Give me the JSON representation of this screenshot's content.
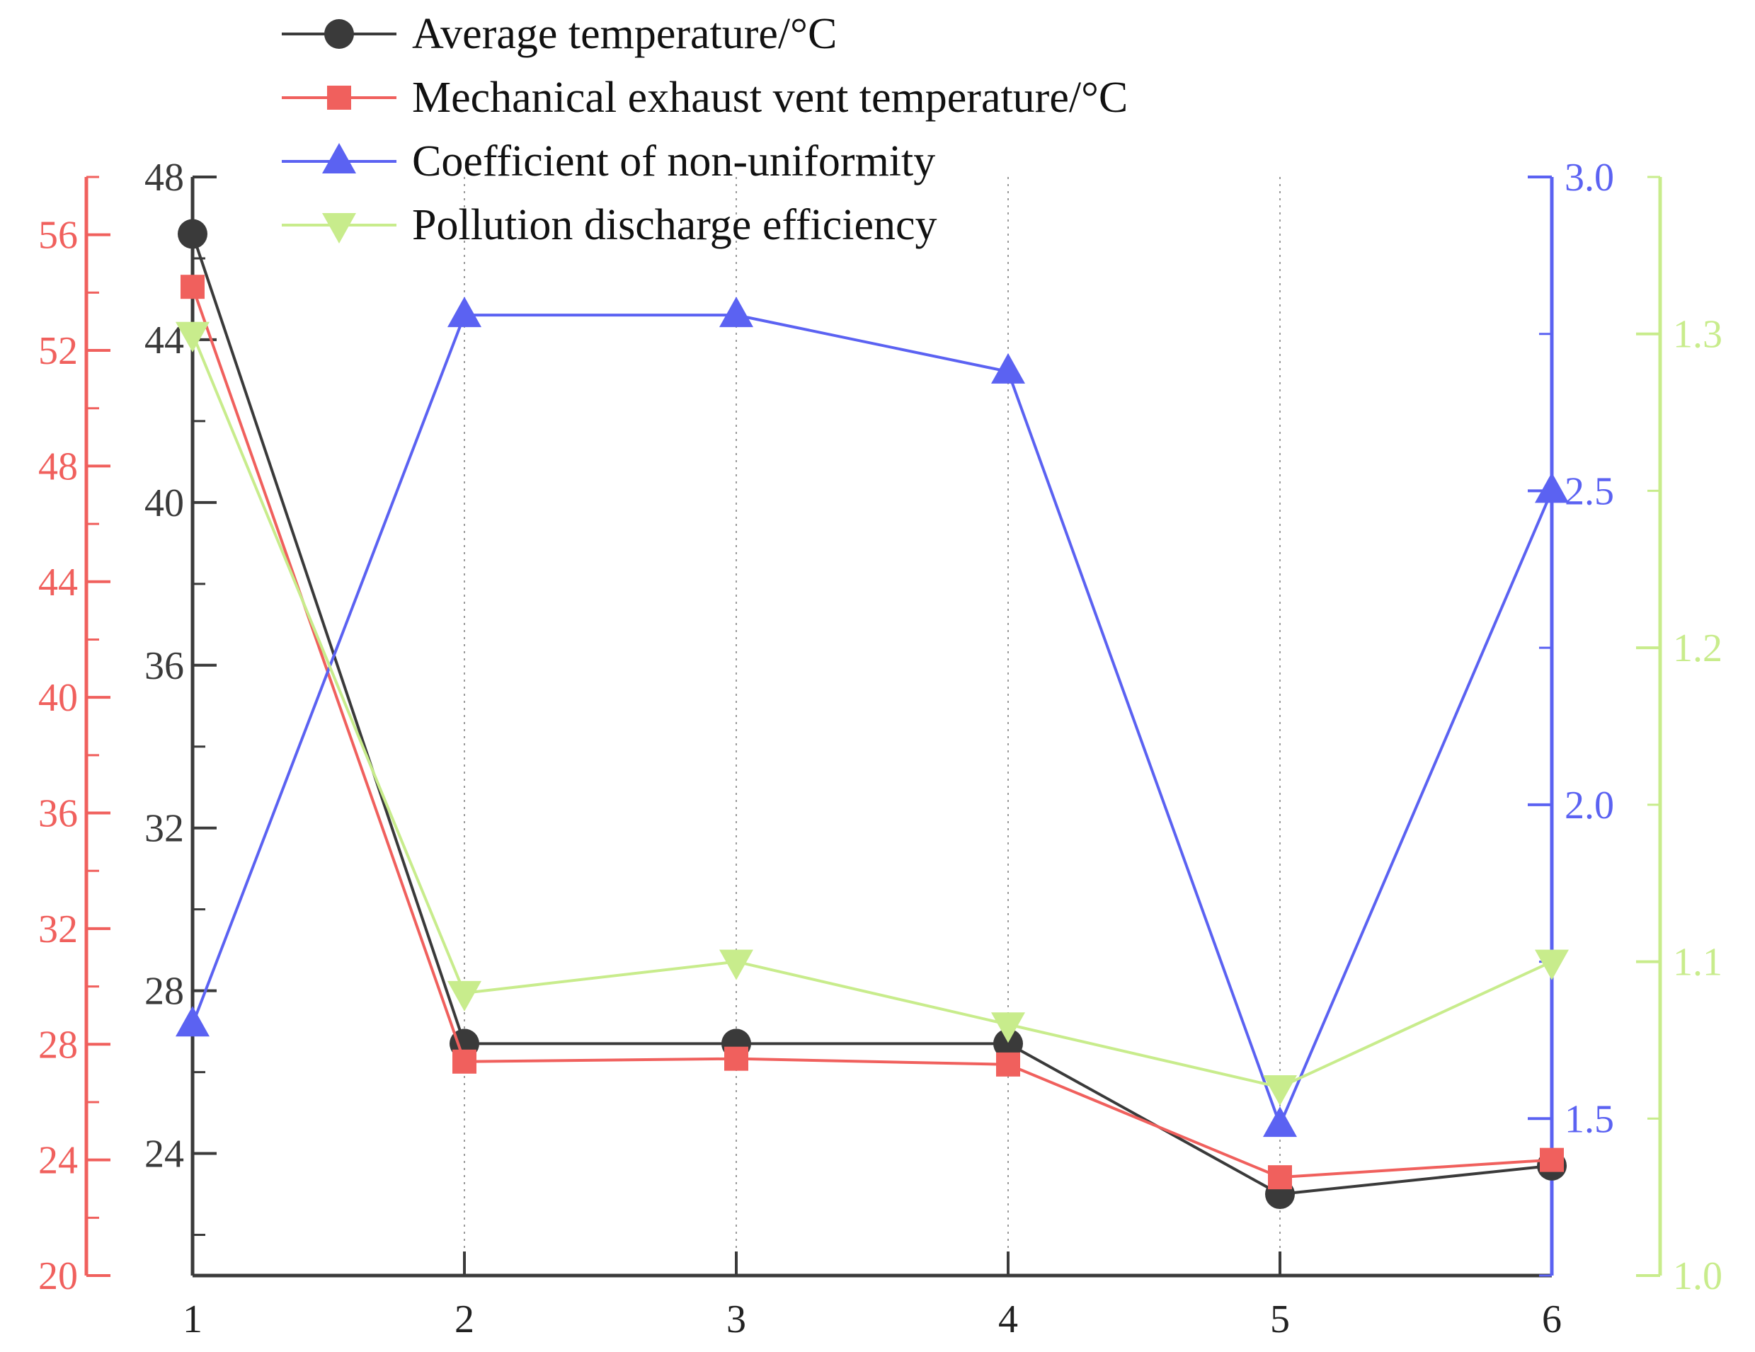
{
  "chart_data": {
    "type": "line",
    "x": [
      1,
      2,
      3,
      4,
      5,
      6
    ],
    "x_ticks": [
      "1",
      "2",
      "3",
      "4",
      "5",
      "6"
    ],
    "grid": "vertical dotted",
    "legend_position": "top-left",
    "series": [
      {
        "name": "Average temperature/°C",
        "color": "#3a3a3a",
        "marker": "circle",
        "axis": "left-inner",
        "values": [
          46.6,
          26.7,
          26.7,
          26.7,
          23.0,
          23.7
        ]
      },
      {
        "name": "Mechanical exhaust vent temperature/°C",
        "color": "#f0605d",
        "marker": "square",
        "axis": "left-outer",
        "values": [
          54.2,
          27.4,
          27.5,
          27.3,
          23.4,
          24.0
        ]
      },
      {
        "name": "Coefficient of non-uniformity",
        "color": "#5b62f2",
        "marker": "triangle-up",
        "axis": "right-inner",
        "values": [
          1.65,
          2.78,
          2.78,
          2.69,
          1.49,
          2.5
        ]
      },
      {
        "name": "Pollution discharge efficiency",
        "color": "#c8ec8c",
        "marker": "triangle-down",
        "axis": "right-outer",
        "values": [
          1.3,
          1.09,
          1.1,
          1.08,
          1.06,
          1.1
        ]
      }
    ],
    "axes": {
      "left-inner": {
        "range": [
          21,
          48
        ],
        "ticks": [
          "24",
          "28",
          "32",
          "36",
          "40",
          "44",
          "48"
        ],
        "color": "#3a3a3a"
      },
      "left-outer": {
        "range": [
          20,
          58
        ],
        "ticks": [
          "20",
          "24",
          "28",
          "32",
          "36",
          "40",
          "44",
          "48",
          "52",
          "56"
        ],
        "color": "#f0605d"
      },
      "right-inner": {
        "range": [
          1.25,
          3.0
        ],
        "ticks": [
          "1.5",
          "2.0",
          "2.5",
          "3.0"
        ],
        "color": "#5b62f2"
      },
      "right-outer": {
        "range": [
          1.0,
          1.35
        ],
        "ticks": [
          "1.0",
          "1.1",
          "1.2",
          "1.3"
        ],
        "color": "#c8ec8c"
      }
    }
  }
}
